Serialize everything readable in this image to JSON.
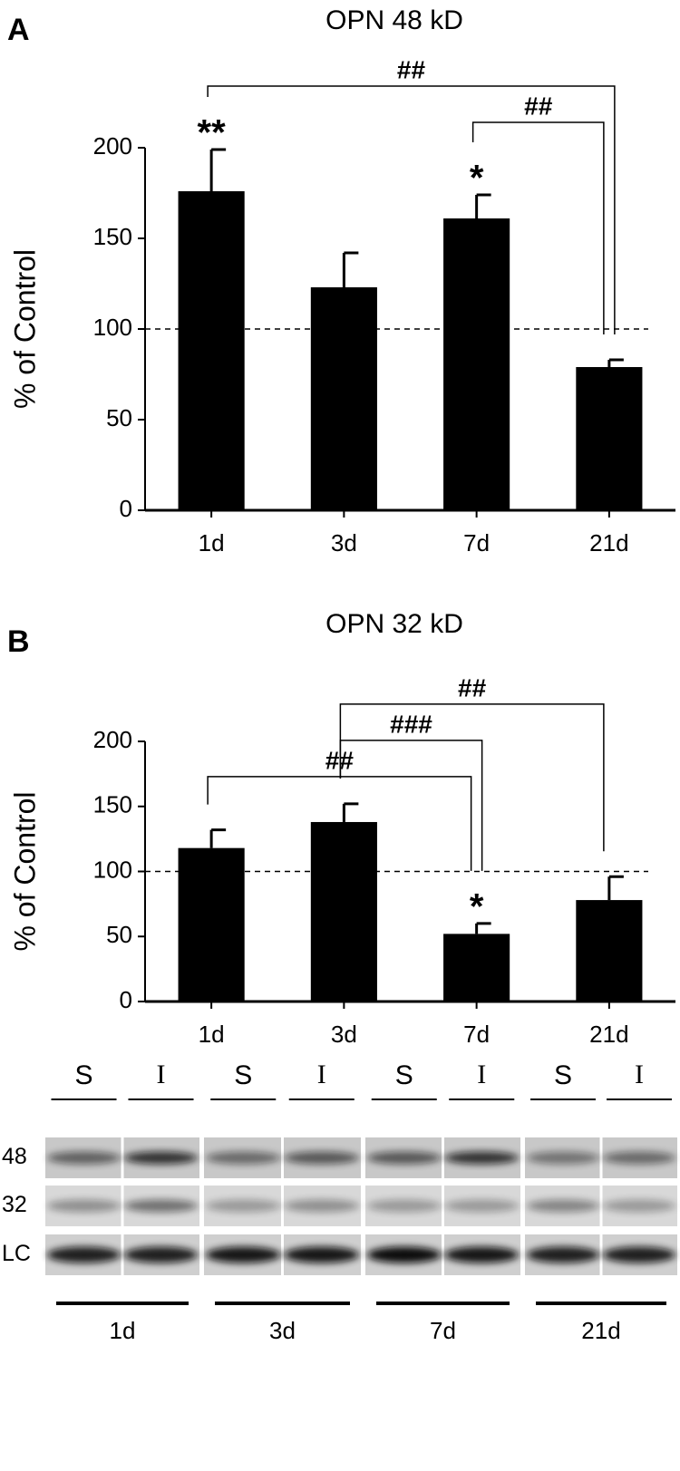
{
  "chart_data": [
    {
      "type": "bar",
      "panel": "A",
      "title": "OPN 48 kD",
      "ylabel": "% of Control",
      "categories": [
        "1d",
        "3d",
        "7d",
        "21d"
      ],
      "values": [
        176,
        123,
        161,
        79
      ],
      "errors": [
        23,
        19,
        13,
        4
      ],
      "color": "#000000",
      "ylim": [
        0,
        200
      ],
      "yticks": [
        0,
        50,
        100,
        150,
        200
      ],
      "reference_line": 100,
      "annotations": [
        {
          "text": "**",
          "category": "1d"
        },
        {
          "text": "*",
          "category": "7d"
        }
      ],
      "brackets": [
        {
          "text": "##",
          "from": "7d",
          "to": "21d"
        },
        {
          "text": "##",
          "from": "1d",
          "to": "21d"
        }
      ]
    },
    {
      "type": "bar",
      "panel": "B",
      "title": "OPN 32 kD",
      "ylabel": "% of Control",
      "categories": [
        "1d",
        "3d",
        "7d",
        "21d"
      ],
      "values": [
        118,
        138,
        52,
        78
      ],
      "errors": [
        14,
        14,
        8,
        18
      ],
      "color": "#000000",
      "ylim": [
        0,
        200
      ],
      "yticks": [
        0,
        50,
        100,
        150,
        200
      ],
      "reference_line": 100,
      "annotations": [
        {
          "text": "*",
          "category": "7d"
        }
      ],
      "brackets": [
        {
          "text": "##",
          "from": "1d",
          "to": "7d"
        },
        {
          "text": "###",
          "from": "3d",
          "to": "7d"
        },
        {
          "text": "##",
          "from": "3d",
          "to": "21d"
        }
      ]
    }
  ],
  "blot": {
    "lanes": [
      "S",
      "I",
      "S",
      "I",
      "S",
      "I",
      "S",
      "I"
    ],
    "rows": [
      "48",
      "32",
      "LC"
    ],
    "groups": [
      "1d",
      "3d",
      "7d",
      "21d"
    ]
  }
}
